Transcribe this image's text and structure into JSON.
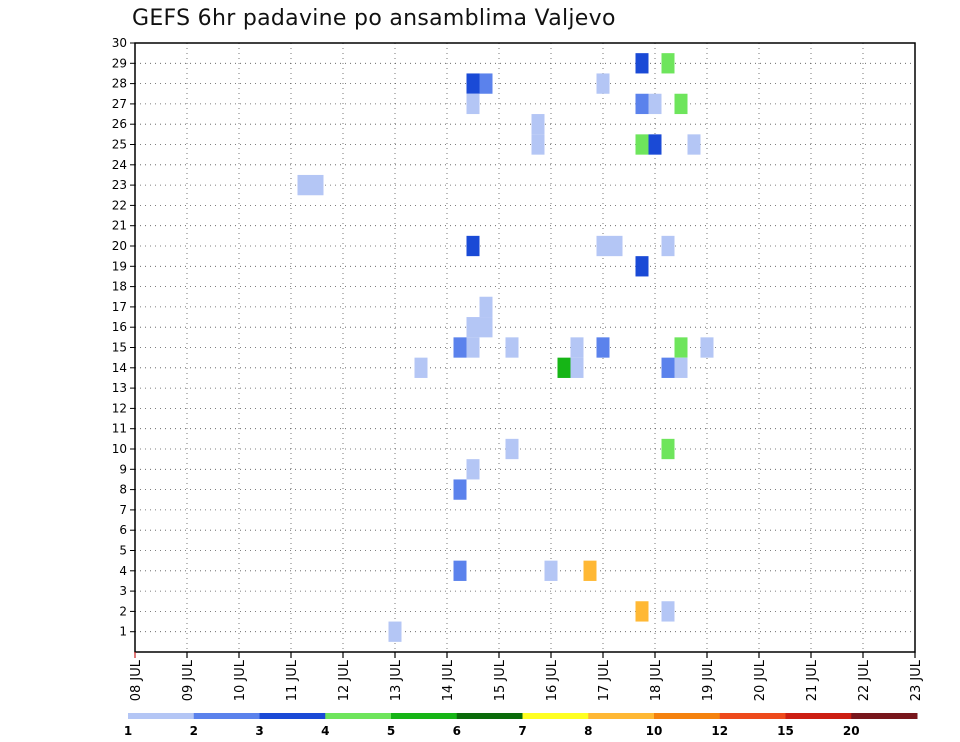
{
  "title": "GEFS 6hr padavine po ansamblima Valjevo",
  "chart_data": {
    "type": "heatmap",
    "title": "GEFS 6hr padavine po ansamblima Valjevo",
    "xlabel": "",
    "ylabel": "",
    "x_ticks": [
      "08 JUL",
      "09 JUL",
      "10 JUL",
      "11 JUL",
      "12 JUL",
      "13 JUL",
      "14 JUL",
      "15 JUL",
      "16 JUL",
      "17 JUL",
      "18 JUL",
      "19 JUL",
      "20 JUL",
      "21 JUL",
      "22 JUL",
      "23 JUL"
    ],
    "y_ticks": [
      "1",
      "2",
      "3",
      "4",
      "5",
      "6",
      "7",
      "8",
      "9",
      "10",
      "11",
      "12",
      "13",
      "14",
      "15",
      "16",
      "17",
      "18",
      "19",
      "20",
      "21",
      "22",
      "23",
      "24",
      "25",
      "26",
      "27",
      "28",
      "29",
      "30"
    ],
    "xlim": [
      0,
      60
    ],
    "ylim": [
      0,
      30
    ],
    "grid": true,
    "legend_position": "bottom",
    "legend": {
      "labels": [
        "1",
        "2",
        "3",
        "4",
        "5",
        "6",
        "7",
        "8",
        "10",
        "12",
        "15",
        "20"
      ],
      "colors": [
        "#b4c6f5",
        "#5b82ec",
        "#1a4ad6",
        "#6ee55c",
        "#16b516",
        "#0a6b0a",
        "#ffff22",
        "#ffb834",
        "#f5820e",
        "#ee4a1c",
        "#cc1e12",
        "#78161c"
      ]
    },
    "cells": [
      {
        "t": 13,
        "m": 23,
        "v": 1
      },
      {
        "t": 14,
        "m": 23,
        "v": 1
      },
      {
        "t": 31,
        "m": 26,
        "v": 1
      },
      {
        "t": 31,
        "m": 25,
        "v": 1
      },
      {
        "t": 39,
        "m": 25,
        "v": 4
      },
      {
        "t": 40,
        "m": 25,
        "v": 3
      },
      {
        "t": 43,
        "m": 25,
        "v": 1
      },
      {
        "t": 26,
        "m": 28,
        "v": 3
      },
      {
        "t": 27,
        "m": 28,
        "v": 2
      },
      {
        "t": 36,
        "m": 28,
        "v": 1
      },
      {
        "t": 26,
        "m": 27,
        "v": 1
      },
      {
        "t": 39,
        "m": 27,
        "v": 2
      },
      {
        "t": 40,
        "m": 27,
        "v": 1
      },
      {
        "t": 42,
        "m": 27,
        "v": 4
      },
      {
        "t": 26,
        "m": 20,
        "v": 3
      },
      {
        "t": 36,
        "m": 20,
        "v": 1
      },
      {
        "t": 37,
        "m": 20,
        "v": 1
      },
      {
        "t": 41,
        "m": 20,
        "v": 1
      },
      {
        "t": 27,
        "m": 17,
        "v": 1
      },
      {
        "t": 27,
        "m": 16,
        "v": 1
      },
      {
        "t": 26,
        "m": 16,
        "v": 1
      },
      {
        "t": 25,
        "m": 15,
        "v": 2
      },
      {
        "t": 26,
        "m": 15,
        "v": 1
      },
      {
        "t": 34,
        "m": 15,
        "v": 1
      },
      {
        "t": 36,
        "m": 15,
        "v": 2
      },
      {
        "t": 29,
        "m": 15,
        "v": 1
      },
      {
        "t": 42,
        "m": 15,
        "v": 4
      },
      {
        "t": 44,
        "m": 15,
        "v": 1
      },
      {
        "t": 33,
        "m": 14,
        "v": 5
      },
      {
        "t": 34,
        "m": 14,
        "v": 1
      },
      {
        "t": 41,
        "m": 14,
        "v": 2
      },
      {
        "t": 42,
        "m": 14,
        "v": 1
      },
      {
        "t": 22,
        "m": 14,
        "v": 1
      },
      {
        "t": 25,
        "m": 8,
        "v": 2
      },
      {
        "t": 26,
        "m": 9,
        "v": 1
      },
      {
        "t": 29,
        "m": 10,
        "v": 1
      },
      {
        "t": 41,
        "m": 10,
        "v": 4
      },
      {
        "t": 39,
        "m": 29,
        "v": 3
      },
      {
        "t": 41,
        "m": 29,
        "v": 4
      },
      {
        "t": 25,
        "m": 4,
        "v": 2
      },
      {
        "t": 32,
        "m": 4,
        "v": 1
      },
      {
        "t": 35,
        "m": 4,
        "v": 8
      },
      {
        "t": 39,
        "m": 2,
        "v": 8
      },
      {
        "t": 41,
        "m": 2,
        "v": 1
      },
      {
        "t": 20,
        "m": 1,
        "v": 1
      },
      {
        "t": 39,
        "m": 19,
        "v": 3
      }
    ]
  }
}
